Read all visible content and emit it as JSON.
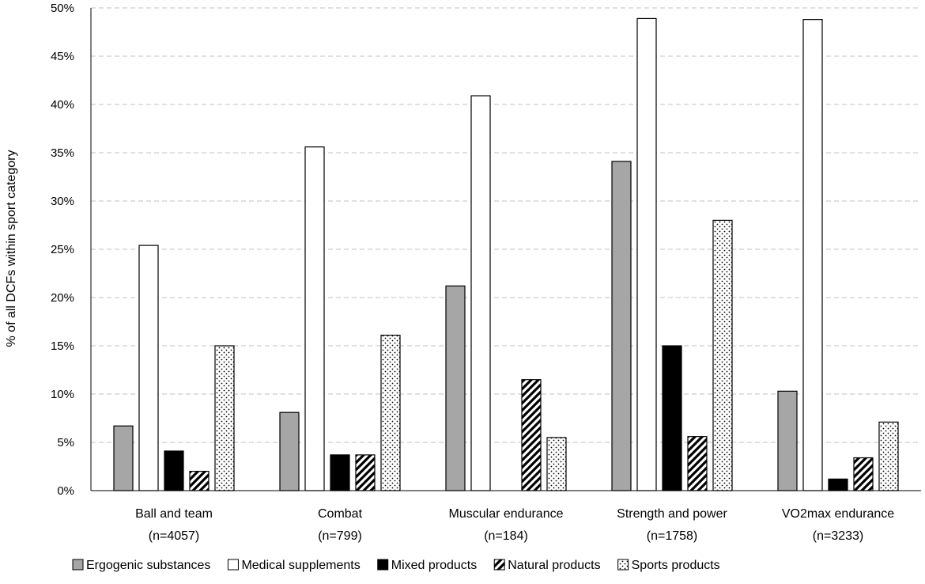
{
  "chart_data": {
    "type": "bar",
    "title": "",
    "xlabel": "",
    "ylabel": "% of all DCFs within sport category",
    "ylim": [
      0,
      50
    ],
    "ytick_step": 5,
    "ytick_suffix": "%",
    "grid": true,
    "legend_position": "bottom",
    "categories": [
      {
        "name": "Ball and team",
        "n": "(n=4057)"
      },
      {
        "name": "Combat",
        "n": "(n=799)"
      },
      {
        "name": "Muscular endurance",
        "n": "(n=184)"
      },
      {
        "name": "Strength and power",
        "n": "(n=1758)"
      },
      {
        "name": "VO2max endurance",
        "n": "(n=3233)"
      }
    ],
    "series": [
      {
        "name": "Ergogenic substances",
        "fill": "gray",
        "values": [
          6.7,
          8.1,
          21.2,
          34.1,
          10.3
        ]
      },
      {
        "name": "Medical supplements",
        "fill": "white",
        "values": [
          25.4,
          35.6,
          40.9,
          48.9,
          48.8
        ]
      },
      {
        "name": "Mixed products",
        "fill": "black",
        "values": [
          4.1,
          3.7,
          0,
          15.0,
          1.2
        ]
      },
      {
        "name": "Natural products",
        "fill": "hatch",
        "values": [
          2.0,
          3.7,
          11.5,
          5.6,
          3.4
        ]
      },
      {
        "name": "Sports products",
        "fill": "dotted",
        "values": [
          15.0,
          16.1,
          5.5,
          28.0,
          7.1
        ]
      }
    ],
    "colors": {
      "gray": "#a6a6a6",
      "white": "#ffffff",
      "black": "#000000",
      "grid": "#c0c0c0",
      "axis": "#000000"
    }
  }
}
